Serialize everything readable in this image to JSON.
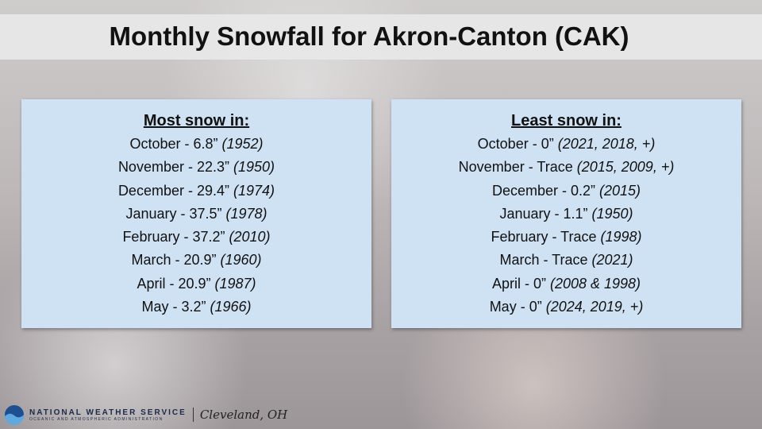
{
  "header": {
    "title": "Monthly Snowfall for Akron-Canton (CAK)"
  },
  "panels": [
    {
      "heading": "Most snow in:",
      "rows": [
        {
          "text": "October - 6.8”",
          "years": "(1952)"
        },
        {
          "text": "November - 22.3”",
          "years": "(1950)"
        },
        {
          "text": "December - 29.4”",
          "years": "(1974)"
        },
        {
          "text": "January - 37.5”",
          "years": "(1978)"
        },
        {
          "text": "February - 37.2”",
          "years": "(2010)"
        },
        {
          "text": "March - 20.9”",
          "years": "(1960)"
        },
        {
          "text": "April - 20.9”",
          "years": "(1987)"
        },
        {
          "text": "May - 3.2”",
          "years": "(1966)"
        }
      ]
    },
    {
      "heading": "Least snow in:",
      "rows": [
        {
          "text": "October - 0”",
          "years": "(2021, 2018, +)"
        },
        {
          "text": "November - Trace",
          "years": "(2015, 2009, +)"
        },
        {
          "text": "December - 0.2”",
          "years": "(2015)"
        },
        {
          "text": "January - 1.1”",
          "years": "(1950)"
        },
        {
          "text": "February - Trace",
          "years": "(1998)"
        },
        {
          "text": "March - Trace",
          "years": "(2021)"
        },
        {
          "text": "April - 0”",
          "years": "(2008 & 1998)"
        },
        {
          "text": "May - 0”",
          "years": "(2024, 2019, +)"
        }
      ]
    }
  ],
  "footer": {
    "agency": "NATIONAL WEATHER SERVICE",
    "subtitle": "OCEANIC AND ATMOSPHERIC ADMINISTRATION",
    "office": "Cleveland, OH"
  }
}
